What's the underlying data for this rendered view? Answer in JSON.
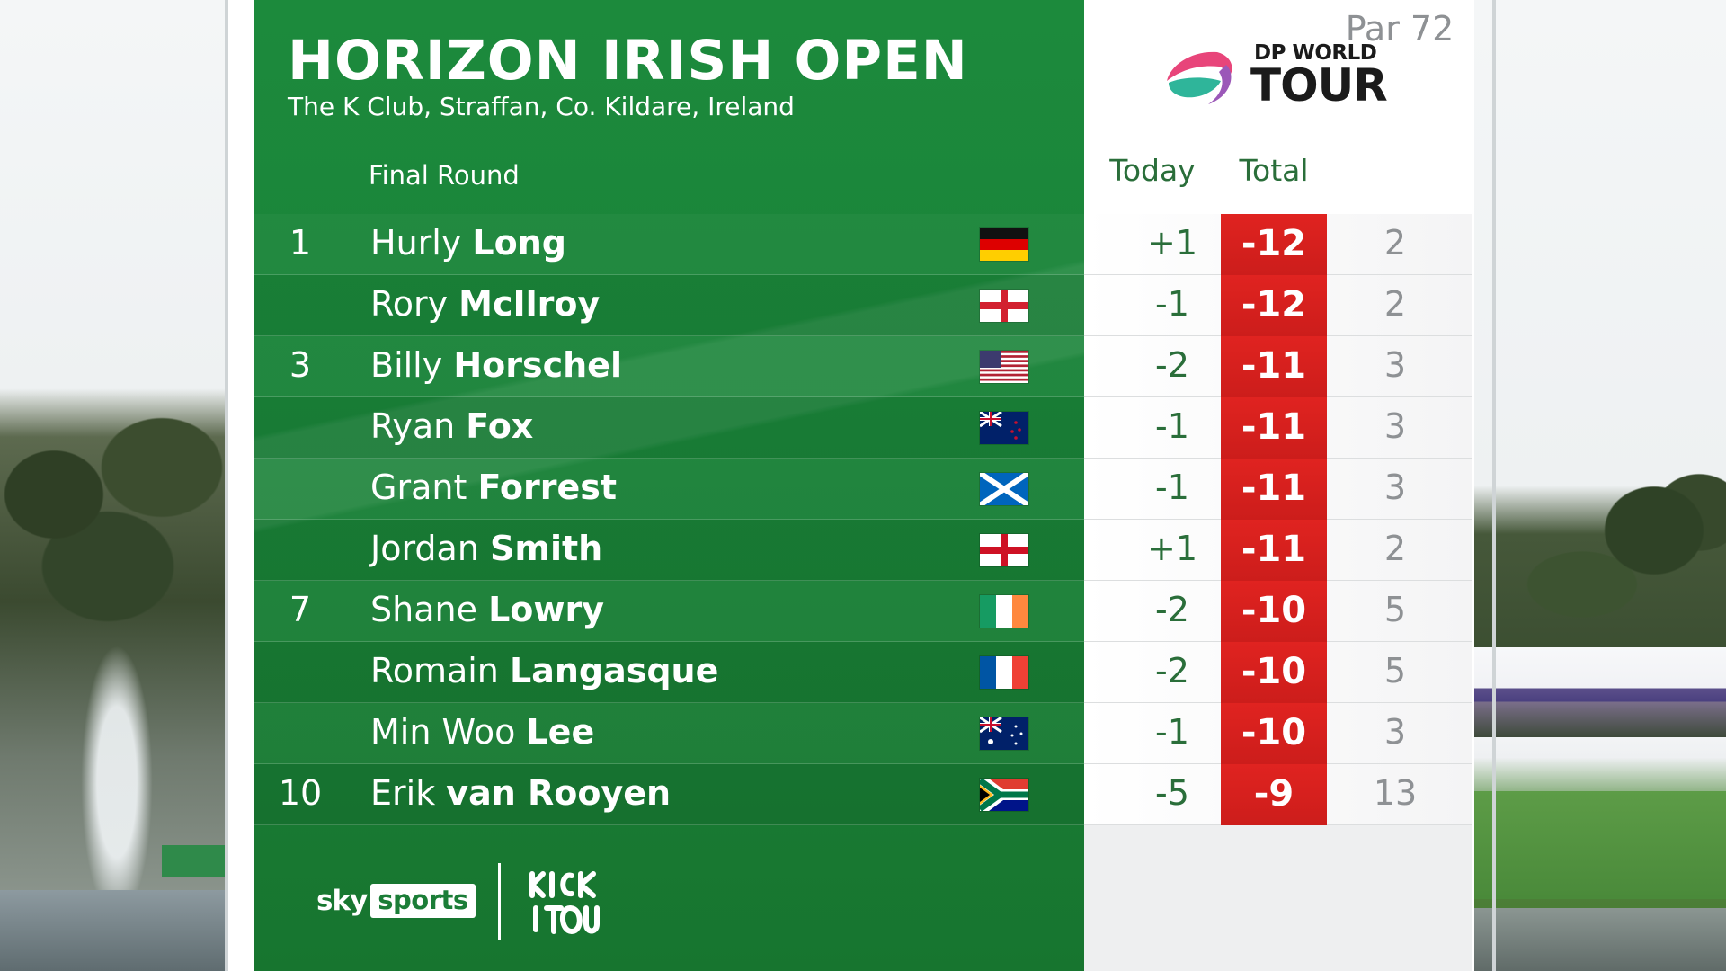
{
  "tournament": {
    "title": "HORIZON IRISH OPEN",
    "venue": "The K Club, Straffan, Co. Kildare, Ireland",
    "round": "Final Round"
  },
  "tour_logo": {
    "line1": "DP WORLD",
    "line2": "TOUR"
  },
  "columns": {
    "today": "Today",
    "total": "Total",
    "par": "Par 72"
  },
  "colors": {
    "green": "#1a8339",
    "total_red": "#d41f1d",
    "today_text": "#2a6e3a",
    "par_text": "#8e9194"
  },
  "leaderboard": [
    {
      "pos": "1",
      "first": "Hurly",
      "last": "Long",
      "flag": "germany",
      "today": "+1",
      "total": "-12",
      "par": "2"
    },
    {
      "pos": "",
      "first": "Rory",
      "last": "McIlroy",
      "flag": "northern-ireland",
      "today": "-1",
      "total": "-12",
      "par": "2"
    },
    {
      "pos": "3",
      "first": "Billy",
      "last": "Horschel",
      "flag": "usa",
      "today": "-2",
      "total": "-11",
      "par": "3"
    },
    {
      "pos": "",
      "first": "Ryan",
      "last": "Fox",
      "flag": "new-zealand",
      "today": "-1",
      "total": "-11",
      "par": "3"
    },
    {
      "pos": "",
      "first": "Grant",
      "last": "Forrest",
      "flag": "scotland",
      "today": "-1",
      "total": "-11",
      "par": "3"
    },
    {
      "pos": "",
      "first": "Jordan",
      "last": "Smith",
      "flag": "england",
      "today": "+1",
      "total": "-11",
      "par": "2"
    },
    {
      "pos": "7",
      "first": "Shane",
      "last": "Lowry",
      "flag": "ireland",
      "today": "-2",
      "total": "-10",
      "par": "5"
    },
    {
      "pos": "",
      "first": "Romain",
      "last": "Langasque",
      "flag": "france",
      "today": "-2",
      "total": "-10",
      "par": "5"
    },
    {
      "pos": "",
      "first": "Min Woo",
      "last": "Lee",
      "flag": "australia",
      "today": "-1",
      "total": "-10",
      "par": "3"
    },
    {
      "pos": "10",
      "first": "Erik",
      "last": "van Rooyen",
      "flag": "south-africa",
      "today": "-5",
      "total": "-9",
      "par": "13"
    }
  ],
  "footer": {
    "sky": "sky",
    "sports": "sports",
    "kick_it_out": "KICK IT OUT"
  }
}
